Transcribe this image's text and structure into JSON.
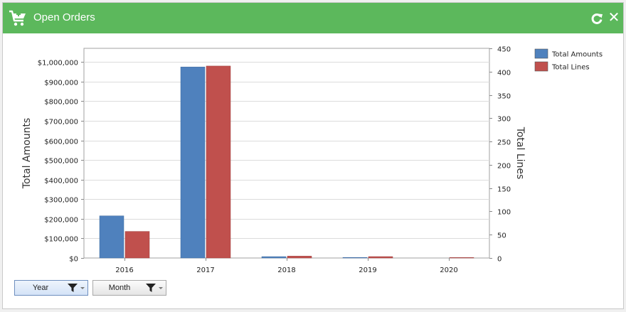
{
  "window": {
    "title": "Open Orders"
  },
  "chart_data": {
    "type": "bar",
    "categories": [
      "2016",
      "2017",
      "2018",
      "2019",
      "2020"
    ],
    "series": [
      {
        "name": "Total Amounts",
        "axis": "left",
        "color": "#4f81bd",
        "values": [
          215000,
          975000,
          7000,
          3000,
          0
        ]
      },
      {
        "name": "Total Lines",
        "axis": "right",
        "color": "#c0504d",
        "values": [
          57,
          412,
          4,
          3,
          1
        ]
      }
    ],
    "ylabel": "Total Amounts",
    "ylabel_right": "Total Lines",
    "ylim": [
      0,
      1070000
    ],
    "ylim_right": [
      0,
      450
    ],
    "y_ticks": [
      "$0",
      "$100,000",
      "$200,000",
      "$300,000",
      "$400,000",
      "$500,000",
      "$600,000",
      "$700,000",
      "$800,000",
      "$900,000",
      "$1,000,000"
    ],
    "y_right_ticks": [
      "0",
      "50",
      "100",
      "150",
      "200",
      "250",
      "300",
      "350",
      "400",
      "450"
    ],
    "grid": true,
    "legend": "top-right"
  },
  "filters": [
    {
      "label": "Year",
      "active": true
    },
    {
      "label": "Month",
      "active": false
    }
  ]
}
